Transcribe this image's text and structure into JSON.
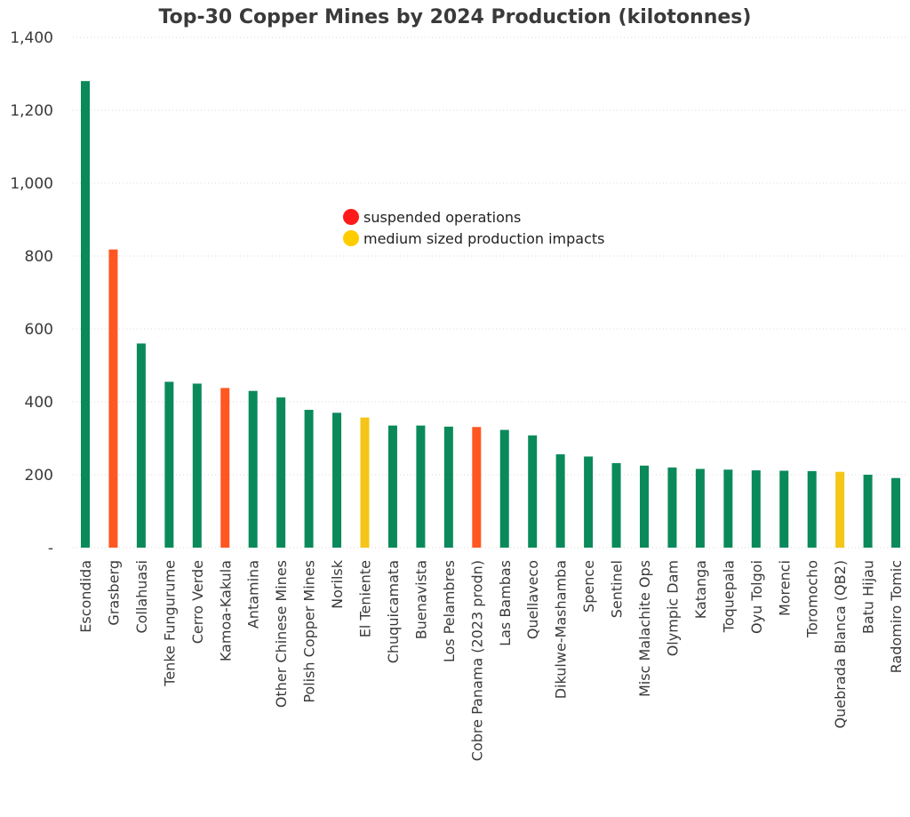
{
  "chart_data": {
    "type": "bar",
    "title": "Top-30 Copper Mines by 2024 Production (kilotonnes)",
    "xlabel": "",
    "ylabel": "",
    "ylim": [
      0,
      1400
    ],
    "yticks": [
      {
        "value": 0,
        "label": "-"
      },
      {
        "value": 200,
        "label": "200"
      },
      {
        "value": 400,
        "label": "400"
      },
      {
        "value": 600,
        "label": "600"
      },
      {
        "value": 800,
        "label": "800"
      },
      {
        "value": 1000,
        "label": "1,000"
      },
      {
        "value": 1200,
        "label": "1,200"
      },
      {
        "value": 1400,
        "label": "1,400"
      }
    ],
    "grid": true,
    "categories": [
      "Escondida",
      "Grasberg",
      "Collahuasi",
      "Tenke Fungurume",
      "Cerro Verde",
      "Kamoa-Kakula",
      "Antamina",
      "Other Chinese Mines",
      "Polish Copper Mines",
      "Norilsk",
      "El Teniente",
      "Chuquicamata",
      "Buenavista",
      "Los Pelambres",
      "Cobre Panama (2023 prodn)",
      "Las Bambas",
      "Quellaveco",
      "Dikulwe-Mashamba",
      "Spence",
      "Sentinel",
      "Misc Malachite Ops",
      "Olympic Dam",
      "Katanga",
      "Toquepala",
      "Oyu Tolgoi",
      "Morenci",
      "Toromocho",
      "Quebrada Blanca (QB2)",
      "Batu Hijau",
      "Radomiro Tomic"
    ],
    "values": [
      1280,
      818,
      560,
      455,
      450,
      438,
      430,
      412,
      378,
      370,
      357,
      335,
      335,
      332,
      331,
      323,
      308,
      256,
      250,
      232,
      225,
      220,
      216,
      214,
      212,
      211,
      210,
      208,
      200,
      191
    ],
    "status": [
      "normal",
      "suspended",
      "normal",
      "normal",
      "normal",
      "suspended",
      "normal",
      "normal",
      "normal",
      "normal",
      "impacted",
      "normal",
      "normal",
      "normal",
      "suspended",
      "normal",
      "normal",
      "normal",
      "normal",
      "normal",
      "normal",
      "normal",
      "normal",
      "normal",
      "normal",
      "normal",
      "normal",
      "impacted",
      "normal",
      "normal"
    ],
    "colors": {
      "normal": "#0a8a5a",
      "suspended": "#ff5722",
      "impacted": "#f5c518"
    },
    "legend": {
      "position": "center",
      "entries": [
        {
          "label": "suspended operations",
          "color": "#ff1a1a"
        },
        {
          "label": "medium sized production impacts",
          "color": "#ffcc00"
        }
      ]
    }
  }
}
